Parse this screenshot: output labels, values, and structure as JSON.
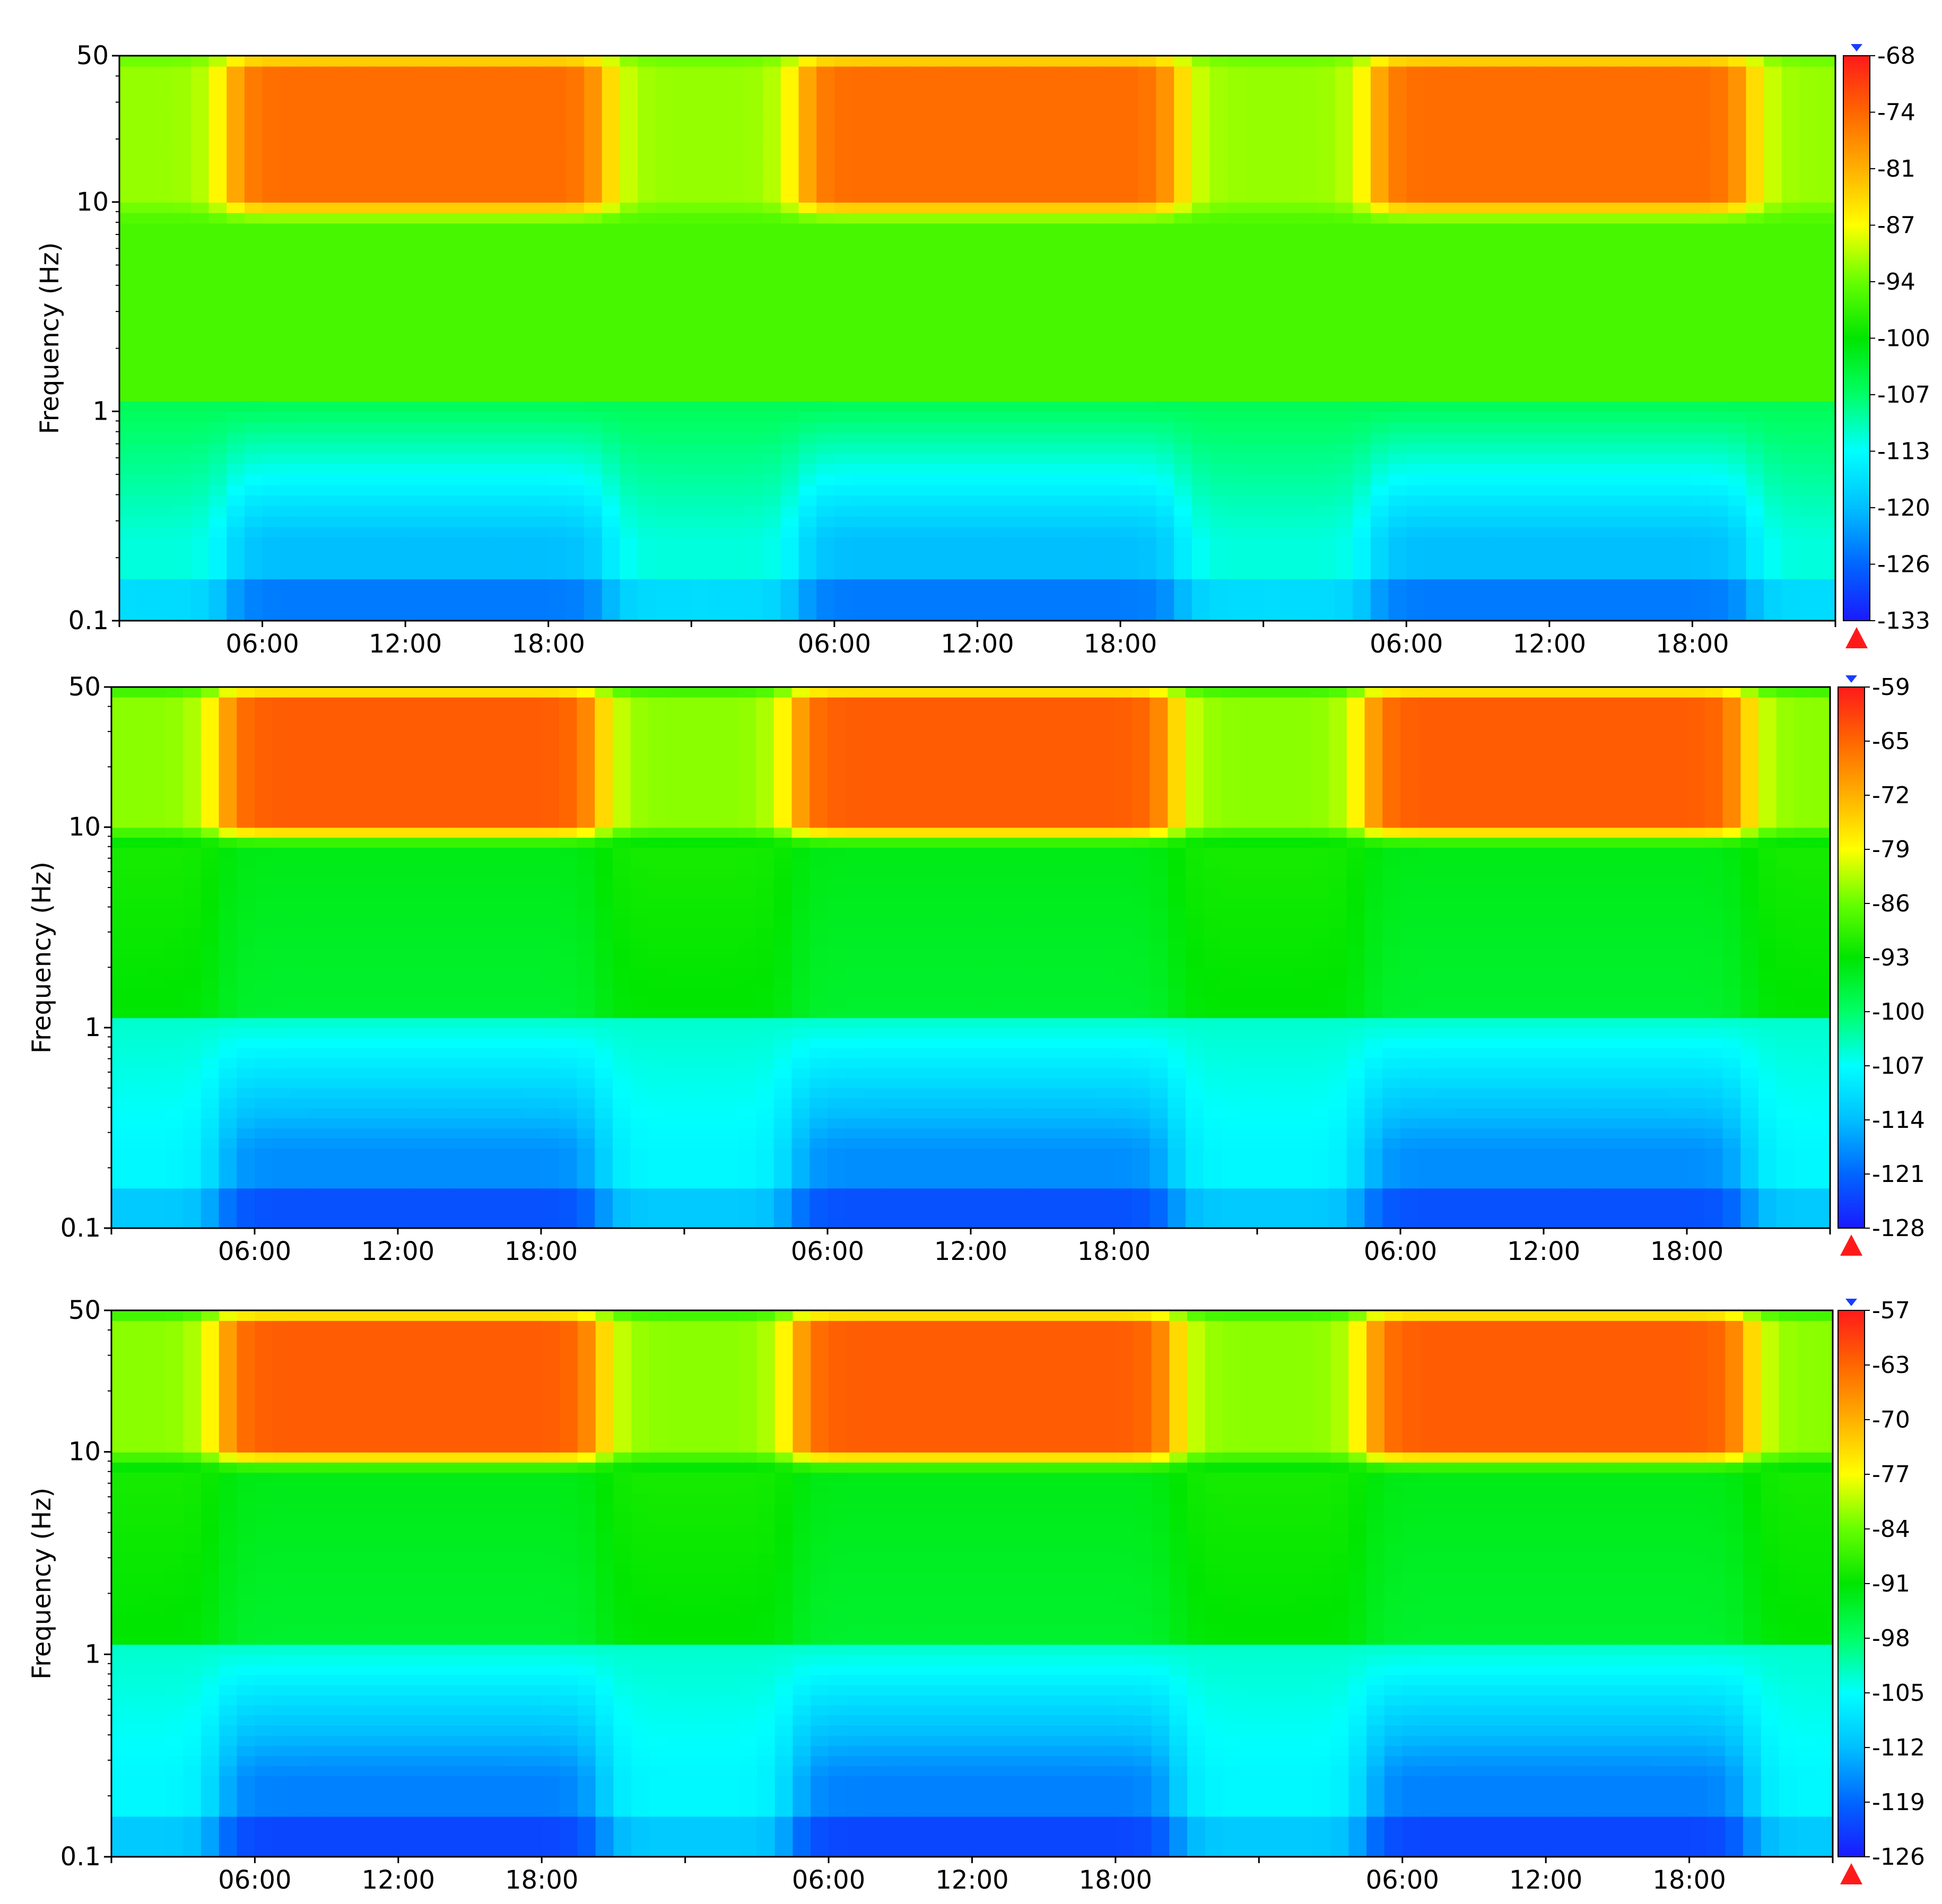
{
  "chart_data": [
    {
      "type": "heatmap",
      "ylabel": "Frequency (Hz)",
      "y_scale": "log",
      "ylim": [
        0.1,
        50
      ],
      "y_ticks": [
        "50",
        "10",
        "1",
        "0.1"
      ],
      "x_tick_labels": [
        "06:00",
        "12:00",
        "18:00",
        "06:00",
        "12:00",
        "18:00",
        "06:00",
        "12:00",
        "18:00"
      ],
      "x_unit": "hours",
      "x_range_hours": [
        0,
        72
      ],
      "colorbar": {
        "ticks": [
          "-68",
          "-74",
          "-81",
          "-87",
          "-94",
          "-100",
          "-107",
          "-113",
          "-120",
          "-126",
          "-133"
        ],
        "min": -133,
        "max": -68
      },
      "bands": {
        "high_freq_band_hz": [
          6,
          50
        ],
        "high_freq_level_day": -75,
        "high_freq_level_night": -92,
        "mid_band_level": -96,
        "low_freq_level_day": -120,
        "low_freq_level_night": -112
      },
      "colormap": [
        "#1a1aff",
        "#0066ff",
        "#00bfff",
        "#00ffff",
        "#00ff66",
        "#00e600",
        "#66ff00",
        "#ffff00",
        "#ffb000",
        "#ff6600",
        "#ff1a1a"
      ]
    },
    {
      "type": "heatmap",
      "ylabel": "Frequency (Hz)",
      "y_scale": "log",
      "ylim": [
        0.1,
        50
      ],
      "y_ticks": [
        "50",
        "10",
        "1",
        "0.1"
      ],
      "x_tick_labels": [
        "06:00",
        "12:00",
        "18:00",
        "06:00",
        "12:00",
        "18:00",
        "06:00",
        "12:00",
        "18:00"
      ],
      "x_unit": "hours",
      "x_range_hours": [
        0,
        72
      ],
      "colorbar": {
        "ticks": [
          "-59",
          "-65",
          "-72",
          "-79",
          "-86",
          "-93",
          "-100",
          "-107",
          "-114",
          "-121",
          "-128"
        ],
        "min": -128,
        "max": -59
      },
      "bands": {
        "high_freq_band_hz": [
          6,
          50
        ],
        "high_freq_level_day": -65,
        "high_freq_level_night": -85,
        "mid_band_level": -95,
        "low_freq_level_day": -118,
        "low_freq_level_night": -108
      },
      "colormap": [
        "#1a1aff",
        "#0066ff",
        "#00bfff",
        "#00ffff",
        "#00ff66",
        "#00e600",
        "#66ff00",
        "#ffff00",
        "#ffb000",
        "#ff6600",
        "#ff1a1a"
      ]
    },
    {
      "type": "heatmap",
      "ylabel": "Frequency (Hz)",
      "y_scale": "log",
      "ylim": [
        0.1,
        50
      ],
      "y_ticks": [
        "50",
        "10",
        "1",
        "0.1"
      ],
      "x_tick_labels": [
        "06:00",
        "12:00",
        "18:00",
        "06:00",
        "12:00",
        "18:00",
        "06:00",
        "12:00",
        "18:00"
      ],
      "x_unit": "hours",
      "x_range_hours": [
        0,
        72
      ],
      "colorbar": {
        "ticks": [
          "-57",
          "-63",
          "-70",
          "-77",
          "-84",
          "-91",
          "-98",
          "-105",
          "-112",
          "-119",
          "-126"
        ],
        "min": -126,
        "max": -57
      },
      "bands": {
        "high_freq_band_hz": [
          6,
          50
        ],
        "high_freq_level_day": -63,
        "high_freq_level_night": -83,
        "mid_band_level": -93,
        "low_freq_level_day": -117,
        "low_freq_level_night": -106
      },
      "colormap": [
        "#1a1aff",
        "#0066ff",
        "#00bfff",
        "#00ffff",
        "#00ff66",
        "#00e600",
        "#66ff00",
        "#ffff00",
        "#ffb000",
        "#ff6600",
        "#ff1a1a"
      ]
    }
  ]
}
